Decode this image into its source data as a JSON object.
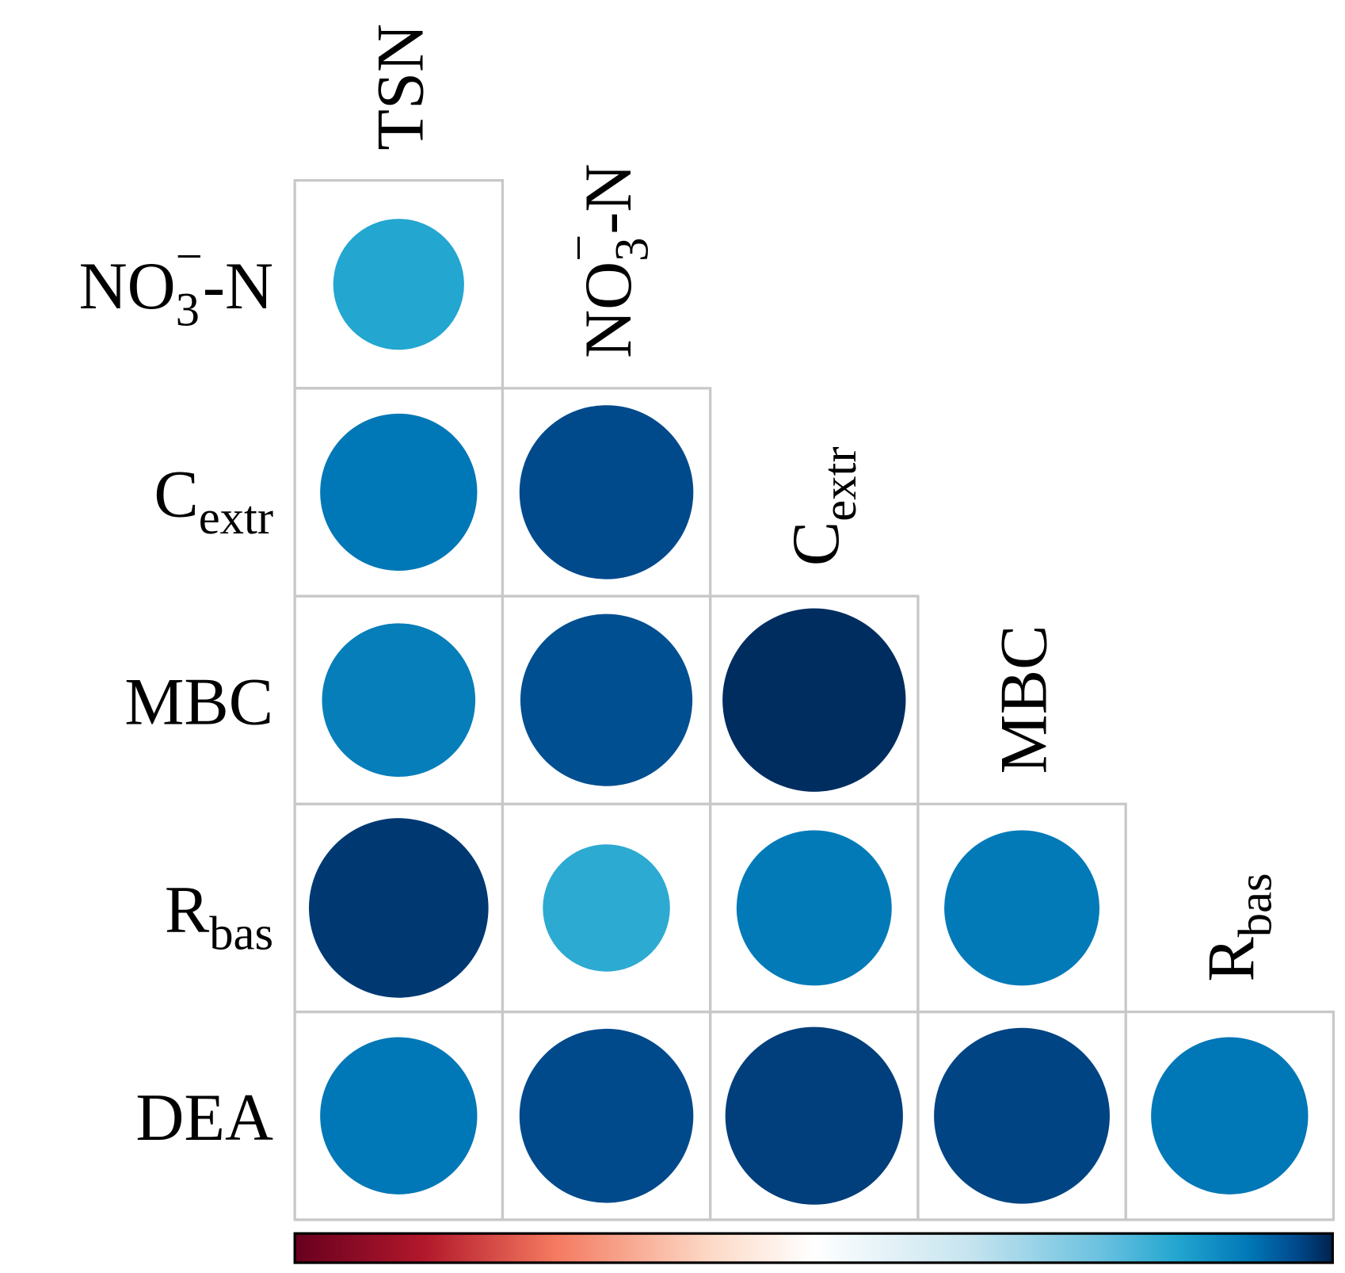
{
  "chart_data": {
    "type": "corrplot",
    "row_labels": [
      {
        "main": "NO",
        "sub": "3",
        "sup": "−",
        "tail": "-N"
      },
      {
        "main": "C",
        "sub": "extr"
      },
      {
        "main": "MBC"
      },
      {
        "main": "R",
        "sub": "bas"
      },
      {
        "main": "DEA"
      }
    ],
    "col_labels": [
      {
        "main": "TSN"
      },
      {
        "main": "NO",
        "sub": "3",
        "sup": "−",
        "tail": "-N"
      },
      {
        "main": "C",
        "sub": "extr"
      },
      {
        "main": "MBC"
      },
      {
        "main": "R",
        "sub": "bas"
      }
    ],
    "values": [
      [
        0.7
      ],
      [
        0.84,
        0.93
      ],
      [
        0.82,
        0.92,
        0.98
      ],
      [
        0.96,
        0.68,
        0.83,
        0.83
      ],
      [
        0.84,
        0.93,
        0.95,
        0.94,
        0.84
      ]
    ],
    "clim": [
      -1,
      1
    ],
    "colorscale": [
      [
        -1,
        "#67001f"
      ],
      [
        -0.75,
        "#b2182b"
      ],
      [
        -0.5,
        "#f4795f"
      ],
      [
        -0.2,
        "#fcd9c6"
      ],
      [
        0,
        "#ffffff"
      ],
      [
        0.3,
        "#c6e4ef"
      ],
      [
        0.55,
        "#6cc2e0"
      ],
      [
        0.7,
        "#23a6d0"
      ],
      [
        0.84,
        "#0077b6"
      ],
      [
        0.93,
        "#004a8c"
      ],
      [
        1,
        "#00224f"
      ]
    ]
  }
}
